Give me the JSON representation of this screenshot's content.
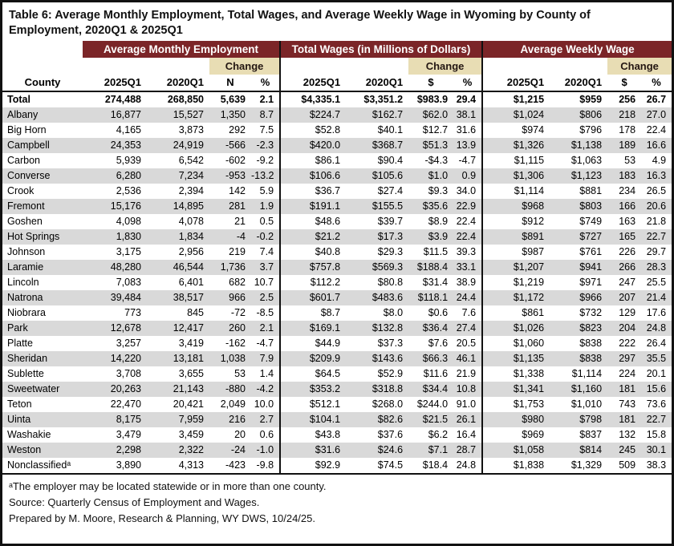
{
  "title_line1": "Table 6: Average Monthly Employment, Total Wages, and Average Weekly Wage in Wyoming by County of",
  "title_line2": "Employment, 2020Q1 & 2025Q1",
  "colors": {
    "header_maroon": "#7B2528",
    "change_tan": "#E8DDB4",
    "row_stripe": "#D9D9D9",
    "border": "#111111"
  },
  "table": {
    "groups": [
      {
        "label": "Average Monthly Employment"
      },
      {
        "label": "Total Wages (in Millions of Dollars)"
      },
      {
        "label": "Average Weekly Wage"
      }
    ],
    "change_label": "Change",
    "columns": [
      "County",
      "2025Q1",
      "2020Q1",
      "N",
      "%",
      "2025Q1",
      "2020Q1",
      "$",
      "%",
      "2025Q1",
      "2020Q1",
      "$",
      "%"
    ],
    "total_row": [
      "Total",
      "274,488",
      "268,850",
      "5,639",
      "2.1",
      "$4,335.1",
      "$3,351.2",
      "$983.9",
      "29.4",
      "$1,215",
      "$959",
      "256",
      "26.7"
    ],
    "rows": [
      [
        "Albany",
        "16,877",
        "15,527",
        "1,350",
        "8.7",
        "$224.7",
        "$162.7",
        "$62.0",
        "38.1",
        "$1,024",
        "$806",
        "218",
        "27.0"
      ],
      [
        "Big Horn",
        "4,165",
        "3,873",
        "292",
        "7.5",
        "$52.8",
        "$40.1",
        "$12.7",
        "31.6",
        "$974",
        "$796",
        "178",
        "22.4"
      ],
      [
        "Campbell",
        "24,353",
        "24,919",
        "-566",
        "-2.3",
        "$420.0",
        "$368.7",
        "$51.3",
        "13.9",
        "$1,326",
        "$1,138",
        "189",
        "16.6"
      ],
      [
        "Carbon",
        "5,939",
        "6,542",
        "-602",
        "-9.2",
        "$86.1",
        "$90.4",
        "-$4.3",
        "-4.7",
        "$1,115",
        "$1,063",
        "53",
        "4.9"
      ],
      [
        "Converse",
        "6,280",
        "7,234",
        "-953",
        "-13.2",
        "$106.6",
        "$105.6",
        "$1.0",
        "0.9",
        "$1,306",
        "$1,123",
        "183",
        "16.3"
      ],
      [
        "Crook",
        "2,536",
        "2,394",
        "142",
        "5.9",
        "$36.7",
        "$27.4",
        "$9.3",
        "34.0",
        "$1,114",
        "$881",
        "234",
        "26.5"
      ],
      [
        "Fremont",
        "15,176",
        "14,895",
        "281",
        "1.9",
        "$191.1",
        "$155.5",
        "$35.6",
        "22.9",
        "$968",
        "$803",
        "166",
        "20.6"
      ],
      [
        "Goshen",
        "4,098",
        "4,078",
        "21",
        "0.5",
        "$48.6",
        "$39.7",
        "$8.9",
        "22.4",
        "$912",
        "$749",
        "163",
        "21.8"
      ],
      [
        "Hot Springs",
        "1,830",
        "1,834",
        "-4",
        "-0.2",
        "$21.2",
        "$17.3",
        "$3.9",
        "22.4",
        "$891",
        "$727",
        "165",
        "22.7"
      ],
      [
        "Johnson",
        "3,175",
        "2,956",
        "219",
        "7.4",
        "$40.8",
        "$29.3",
        "$11.5",
        "39.3",
        "$987",
        "$761",
        "226",
        "29.7"
      ],
      [
        "Laramie",
        "48,280",
        "46,544",
        "1,736",
        "3.7",
        "$757.8",
        "$569.3",
        "$188.4",
        "33.1",
        "$1,207",
        "$941",
        "266",
        "28.3"
      ],
      [
        "Lincoln",
        "7,083",
        "6,401",
        "682",
        "10.7",
        "$112.2",
        "$80.8",
        "$31.4",
        "38.9",
        "$1,219",
        "$971",
        "247",
        "25.5"
      ],
      [
        "Natrona",
        "39,484",
        "38,517",
        "966",
        "2.5",
        "$601.7",
        "$483.6",
        "$118.1",
        "24.4",
        "$1,172",
        "$966",
        "207",
        "21.4"
      ],
      [
        "Niobrara",
        "773",
        "845",
        "-72",
        "-8.5",
        "$8.7",
        "$8.0",
        "$0.6",
        "7.6",
        "$861",
        "$732",
        "129",
        "17.6"
      ],
      [
        "Park",
        "12,678",
        "12,417",
        "260",
        "2.1",
        "$169.1",
        "$132.8",
        "$36.4",
        "27.4",
        "$1,026",
        "$823",
        "204",
        "24.8"
      ],
      [
        "Platte",
        "3,257",
        "3,419",
        "-162",
        "-4.7",
        "$44.9",
        "$37.3",
        "$7.6",
        "20.5",
        "$1,060",
        "$838",
        "222",
        "26.4"
      ],
      [
        "Sheridan",
        "14,220",
        "13,181",
        "1,038",
        "7.9",
        "$209.9",
        "$143.6",
        "$66.3",
        "46.1",
        "$1,135",
        "$838",
        "297",
        "35.5"
      ],
      [
        "Sublette",
        "3,708",
        "3,655",
        "53",
        "1.4",
        "$64.5",
        "$52.9",
        "$11.6",
        "21.9",
        "$1,338",
        "$1,114",
        "224",
        "20.1"
      ],
      [
        "Sweetwater",
        "20,263",
        "21,143",
        "-880",
        "-4.2",
        "$353.2",
        "$318.8",
        "$34.4",
        "10.8",
        "$1,341",
        "$1,160",
        "181",
        "15.6"
      ],
      [
        "Teton",
        "22,470",
        "20,421",
        "2,049",
        "10.0",
        "$512.1",
        "$268.0",
        "$244.0",
        "91.0",
        "$1,753",
        "$1,010",
        "743",
        "73.6"
      ],
      [
        "Uinta",
        "8,175",
        "7,959",
        "216",
        "2.7",
        "$104.1",
        "$82.6",
        "$21.5",
        "26.1",
        "$980",
        "$798",
        "181",
        "22.7"
      ],
      [
        "Washakie",
        "3,479",
        "3,459",
        "20",
        "0.6",
        "$43.8",
        "$37.6",
        "$6.2",
        "16.4",
        "$969",
        "$837",
        "132",
        "15.8"
      ],
      [
        "Weston",
        "2,298",
        "2,322",
        "-24",
        "-1.0",
        "$31.6",
        "$24.6",
        "$7.1",
        "28.7",
        "$1,058",
        "$814",
        "245",
        "30.1"
      ],
      [
        "Nonclassifiedᵃ",
        "3,890",
        "4,313",
        "-423",
        "-9.8",
        "$92.9",
        "$74.5",
        "$18.4",
        "24.8",
        "$1,838",
        "$1,329",
        "509",
        "38.3"
      ]
    ]
  },
  "footnotes": [
    "ᵃThe employer may be located statewide or in more than one county.",
    "Source: Quarterly Census of Employment and Wages.",
    "Prepared by M. Moore, Research & Planning, WY DWS, 10/24/25."
  ]
}
